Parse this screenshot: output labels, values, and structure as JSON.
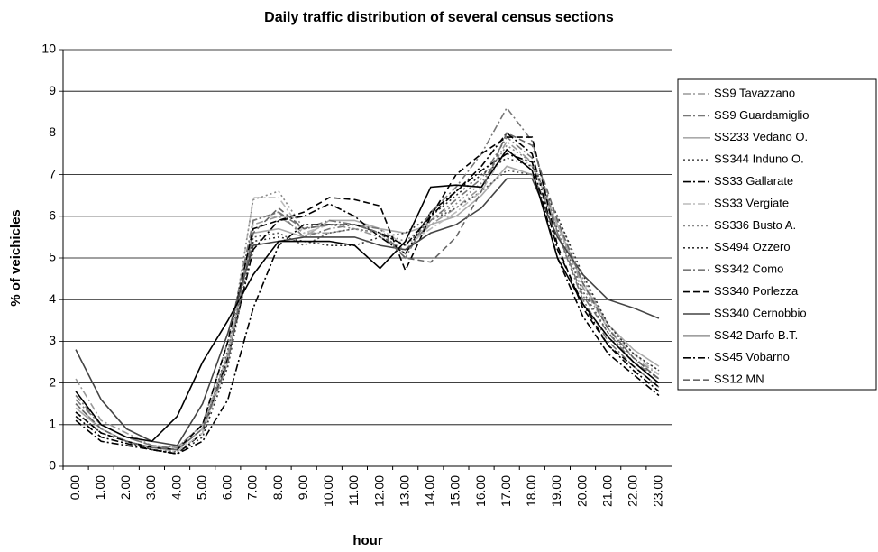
{
  "chart_data": {
    "type": "line",
    "title": "Daily traffic distribution of several census sections",
    "x_label": "hour",
    "y_label": "% of veichicles",
    "categories": [
      "0.00",
      "1.00",
      "2.00",
      "3.00",
      "4.00",
      "5.00",
      "6.00",
      "7.00",
      "8.00",
      "9.00",
      "10.00",
      "11.00",
      "12.00",
      "13.00",
      "14.00",
      "15.00",
      "16.00",
      "17.00",
      "18.00",
      "19.00",
      "20.00",
      "21.00",
      "22.00",
      "23.00"
    ],
    "ylim": [
      0,
      10
    ],
    "yticks": [
      0,
      1,
      2,
      3,
      4,
      5,
      6,
      7,
      8,
      9,
      10
    ],
    "grid": true,
    "legend": "right",
    "series": [
      {
        "name": "SS9 Tavazzano",
        "color": "#999999",
        "dash": "8 3 2 3",
        "values": [
          2.1,
          1.1,
          0.8,
          0.5,
          0.45,
          1.0,
          2.6,
          5.8,
          6.0,
          5.6,
          5.6,
          5.7,
          5.5,
          5.2,
          5.8,
          6.2,
          6.7,
          7.8,
          7.3,
          5.8,
          4.3,
          3.3,
          2.6,
          2.2
        ]
      },
      {
        "name": "SS9 Guardamiglio",
        "color": "#777777",
        "dash": "8 3 2 3",
        "values": [
          1.6,
          1.0,
          0.7,
          0.5,
          0.4,
          0.9,
          2.5,
          5.9,
          6.1,
          5.5,
          5.7,
          5.8,
          5.6,
          5.1,
          5.9,
          6.4,
          6.9,
          7.9,
          7.4,
          5.6,
          4.1,
          3.2,
          2.5,
          2.1
        ]
      },
      {
        "name": "SS233 Vedano O.",
        "color": "#aaaaaa",
        "dash": "",
        "values": [
          1.4,
          0.9,
          0.6,
          0.45,
          0.4,
          0.9,
          2.7,
          5.6,
          5.7,
          5.5,
          5.9,
          5.9,
          5.7,
          5.6,
          5.8,
          6.0,
          6.5,
          7.2,
          7.0,
          5.8,
          4.4,
          3.4,
          2.8,
          2.4
        ]
      },
      {
        "name": "SS344 Induno O.",
        "color": "#555555",
        "dash": "2 3",
        "values": [
          1.3,
          0.8,
          0.6,
          0.4,
          0.35,
          0.8,
          2.8,
          5.5,
          5.6,
          5.3,
          5.6,
          5.7,
          5.6,
          5.3,
          5.9,
          6.2,
          6.6,
          7.1,
          7.0,
          5.7,
          4.2,
          3.2,
          2.6,
          2.1
        ]
      },
      {
        "name": "SS33 Gallarate",
        "color": "#000000",
        "dash": "8 3 2 3",
        "values": [
          1.2,
          0.7,
          0.55,
          0.4,
          0.3,
          0.8,
          2.6,
          5.2,
          5.9,
          6.0,
          6.3,
          6.0,
          5.5,
          5.1,
          6.1,
          6.6,
          7.2,
          8.0,
          7.5,
          5.2,
          3.9,
          2.9,
          2.3,
          1.8
        ]
      },
      {
        "name": "SS33 Vergiate",
        "color": "#bbbbbb",
        "dash": "8 3 2 3",
        "values": [
          1.5,
          0.9,
          0.6,
          0.45,
          0.35,
          0.8,
          2.5,
          6.45,
          6.45,
          5.6,
          5.8,
          5.8,
          5.7,
          5.3,
          5.7,
          6.1,
          6.6,
          7.6,
          7.2,
          5.9,
          4.4,
          3.3,
          2.7,
          2.2
        ]
      },
      {
        "name": "SS336 Busto A.",
        "color": "#888888",
        "dash": "2 3",
        "values": [
          1.5,
          0.9,
          0.6,
          0.45,
          0.4,
          0.9,
          2.7,
          6.4,
          6.6,
          5.7,
          5.8,
          5.7,
          5.6,
          5.4,
          5.9,
          6.3,
          6.8,
          7.7,
          7.3,
          6.0,
          4.5,
          3.4,
          2.7,
          2.3
        ]
      },
      {
        "name": "SS494 Ozzero",
        "color": "#333333",
        "dash": "2 3",
        "values": [
          1.3,
          0.8,
          0.6,
          0.4,
          0.3,
          0.7,
          2.4,
          5.4,
          5.5,
          5.4,
          5.3,
          5.3,
          5.5,
          5.6,
          6.0,
          6.5,
          7.0,
          7.4,
          7.2,
          6.0,
          4.6,
          3.4,
          2.7,
          2.3
        ]
      },
      {
        "name": "SS342 Como",
        "color": "#777777",
        "dash": "8 3 2 3",
        "values": [
          1.7,
          1.0,
          0.7,
          0.5,
          0.45,
          1.0,
          3.0,
          5.9,
          6.1,
          5.7,
          5.9,
          5.8,
          5.7,
          5.0,
          6.1,
          6.7,
          7.5,
          8.6,
          7.8,
          5.6,
          4.0,
          3.0,
          2.4,
          1.9
        ]
      },
      {
        "name": "SS340 Porlezza",
        "color": "#000000",
        "dash": "7 4",
        "values": [
          1.3,
          0.8,
          0.6,
          0.45,
          0.4,
          1.0,
          3.0,
          5.7,
          5.9,
          6.1,
          6.45,
          6.4,
          6.25,
          4.7,
          6.0,
          7.0,
          7.5,
          7.9,
          7.9,
          5.3,
          3.8,
          2.9,
          2.4,
          1.9
        ]
      },
      {
        "name": "SS340 Cernobbio",
        "color": "#444444",
        "dash": "",
        "values": [
          2.8,
          1.6,
          0.9,
          0.6,
          0.5,
          1.5,
          3.2,
          5.3,
          5.4,
          5.5,
          5.5,
          5.5,
          5.3,
          5.2,
          5.6,
          5.8,
          6.2,
          6.9,
          6.9,
          5.5,
          4.6,
          4.0,
          3.8,
          3.55
        ]
      },
      {
        "name": "SS42 Darfo B.T.",
        "color": "#000000",
        "dash": "",
        "values": [
          1.8,
          1.0,
          0.7,
          0.6,
          1.2,
          2.5,
          3.5,
          4.6,
          5.4,
          5.4,
          5.4,
          5.3,
          4.75,
          5.4,
          6.7,
          6.75,
          6.7,
          7.6,
          7.1,
          5.0,
          3.9,
          3.1,
          2.5,
          2.0
        ]
      },
      {
        "name": "SS45 Vobarno",
        "color": "#000000",
        "dash": "8 3 2 3",
        "values": [
          1.1,
          0.6,
          0.5,
          0.4,
          0.3,
          0.6,
          1.6,
          3.8,
          5.3,
          5.8,
          5.8,
          5.8,
          5.6,
          5.3,
          6.0,
          6.6,
          7.1,
          7.5,
          7.3,
          5.0,
          3.6,
          2.7,
          2.2,
          1.7
        ]
      },
      {
        "name": "SS12 MN",
        "color": "#666666",
        "dash": "7 4",
        "values": [
          1.5,
          0.9,
          0.6,
          0.45,
          0.4,
          0.9,
          2.5,
          5.6,
          6.2,
          5.7,
          5.8,
          5.8,
          5.6,
          5.0,
          4.9,
          5.5,
          6.6,
          8.0,
          7.7,
          5.9,
          4.4,
          3.3,
          2.6,
          2.1
        ]
      }
    ]
  }
}
